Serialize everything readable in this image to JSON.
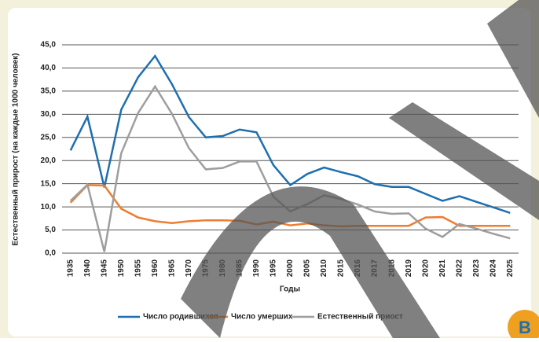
{
  "chart_data": {
    "type": "line",
    "y_label": "Естественный прирост (на каждые 1000 человек)",
    "x_label": "Годы",
    "categories": [
      "1935",
      "1940",
      "1945",
      "1950",
      "1955",
      "1960",
      "1965",
      "1970",
      "1975",
      "1980",
      "1985",
      "1990",
      "1995",
      "2000",
      "2005",
      "2010",
      "2015",
      "2016",
      "2017",
      "2018",
      "2019",
      "2020",
      "2021",
      "2022",
      "2023",
      "2024",
      "2025"
    ],
    "series": [
      {
        "name": "Число родившихся",
        "color": "#1f6fae",
        "values": [
          22.2,
          29.5,
          14.2,
          31,
          38,
          42.6,
          36.5,
          29.4,
          25,
          25.3,
          26.7,
          26.1,
          19,
          14.7,
          17.1,
          18.5,
          17.5,
          16.6,
          14.9,
          14.3,
          14.3,
          12.8,
          11.3,
          12.3,
          11.1,
          9.9,
          8.7
        ]
      },
      {
        "name": "Число умерших",
        "color": "#ed7d31",
        "values": [
          10.9,
          14.7,
          14.6,
          9.6,
          7.7,
          6.9,
          6.5,
          6.9,
          7.1,
          7.1,
          7.0,
          6.2,
          6.8,
          6.0,
          6.4,
          6.0,
          5.8,
          5.9,
          5.9,
          5.9,
          5.9,
          7.7,
          7.8,
          5.9,
          5.9,
          5.9,
          5.9
        ]
      },
      {
        "name": "Естественный приост",
        "color": "#9e9e9e",
        "values": [
          11.3,
          14.8,
          0.3,
          21.6,
          30.3,
          36.0,
          30.1,
          22.7,
          18.1,
          18.4,
          19.8,
          19.8,
          12.2,
          9.0,
          10.6,
          12.5,
          11.7,
          10.5,
          9.0,
          8.5,
          8.6,
          5.3,
          3.5,
          6.3,
          5.3,
          4.2,
          3.2
        ]
      }
    ],
    "ylim": [
      0,
      45
    ],
    "yticks": [
      {
        "value": 0,
        "label": "0,0"
      },
      {
        "value": 5,
        "label": "5,0"
      },
      {
        "value": 10,
        "label": "10,0"
      },
      {
        "value": 15,
        "label": "15,0"
      },
      {
        "value": 20,
        "label": "20,0"
      },
      {
        "value": 25,
        "label": "25,0"
      },
      {
        "value": 30,
        "label": "30,0"
      },
      {
        "value": 35,
        "label": "35,0"
      },
      {
        "value": 40,
        "label": "40,0"
      },
      {
        "value": 45,
        "label": "45,0"
      }
    ],
    "grid": true,
    "watermark": "B"
  }
}
